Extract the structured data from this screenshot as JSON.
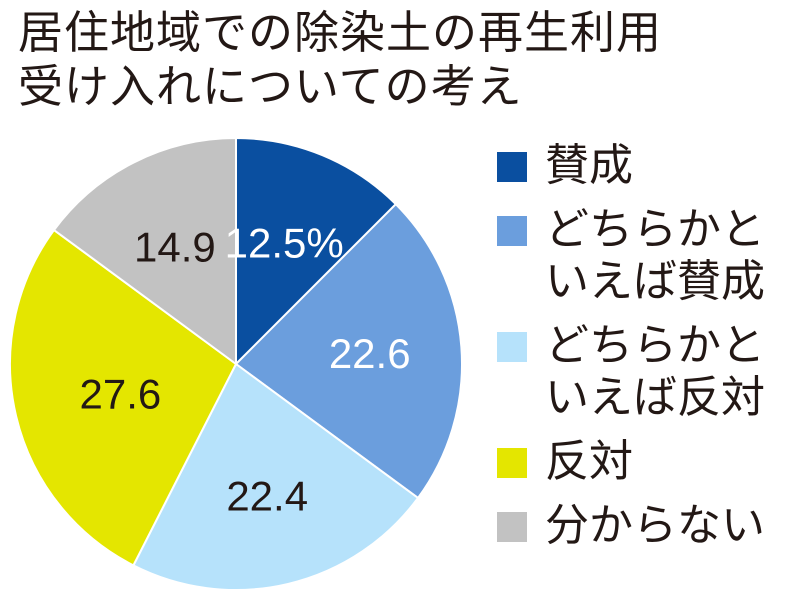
{
  "title_lines": [
    "居住地域での除染土の再生利用",
    "受け入れについての考え"
  ],
  "colors": {
    "stroke": "#ffffff",
    "label_light": "#ffffff",
    "label_dark": "#231815"
  },
  "chart_data": {
    "type": "pie",
    "title": "居住地域での除染土の再生利用受け入れについての考え",
    "start": "12 o'clock, clockwise",
    "slices": [
      {
        "label": "賛成",
        "value": 12.5,
        "display": "12.5%",
        "color": "#0a4fa0",
        "text_color": "#ffffff"
      },
      {
        "label": "どちらかと\nいえば賛成",
        "value": 22.6,
        "display": "22.6",
        "color": "#6b9edd",
        "text_color": "#ffffff"
      },
      {
        "label": "どちらかと\nいえば反対",
        "value": 22.4,
        "display": "22.4",
        "color": "#b6e2fb",
        "text_color": "#231815"
      },
      {
        "label": "反対",
        "value": 27.6,
        "display": "27.6",
        "color": "#e4e600",
        "text_color": "#231815"
      },
      {
        "label": "分からない",
        "value": 14.9,
        "display": "14.9",
        "color": "#c2c2c2",
        "text_color": "#231815"
      }
    ]
  }
}
